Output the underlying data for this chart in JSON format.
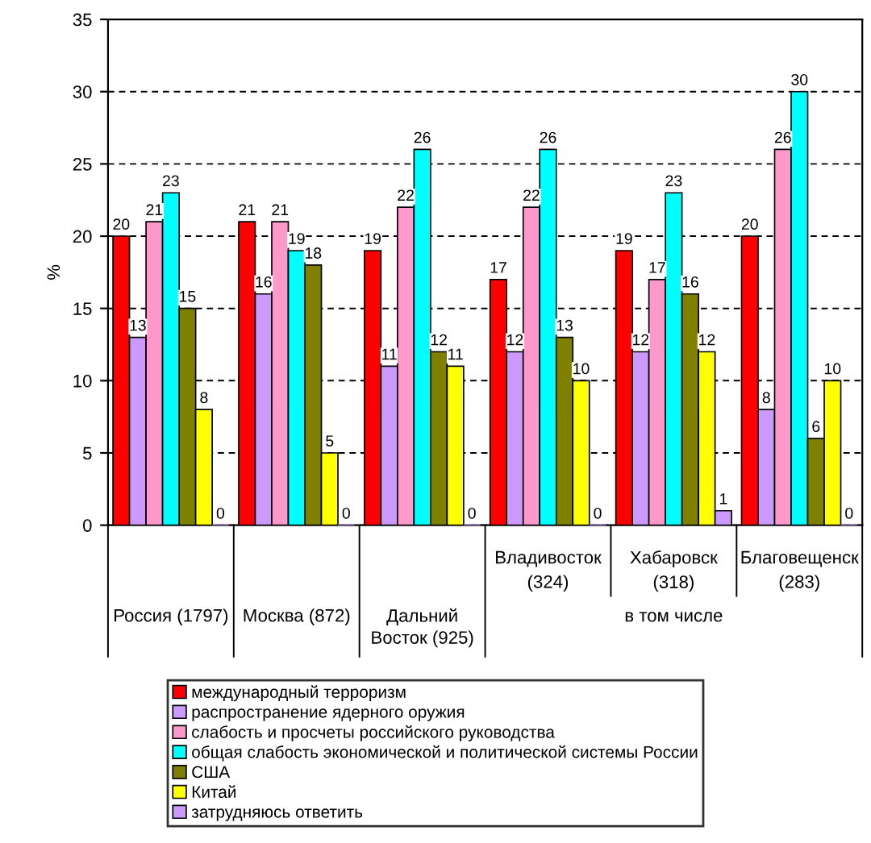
{
  "chart_data": {
    "type": "bar",
    "ylabel": "%",
    "categories": [
      "Россия (1797)",
      "Москва (872)",
      "Дальний Восток (925)",
      "Владивосток (324)",
      "Хабаровск (318)",
      "Благовещенск (283)"
    ],
    "series": [
      {
        "name": "международный терроризм",
        "color": "#ff0000",
        "values": [
          20,
          21,
          19,
          17,
          19,
          20
        ]
      },
      {
        "name": "распространение ядерного оружия",
        "color": "#cc99ff",
        "values": [
          13,
          16,
          11,
          12,
          12,
          8
        ]
      },
      {
        "name": "слабость и просчеты российского руководства",
        "color": "#ff99cc",
        "values": [
          21,
          21,
          22,
          22,
          17,
          26
        ]
      },
      {
        "name": "общая слабость экономической и политической системы России",
        "color": "#00ffff",
        "values": [
          23,
          19,
          26,
          26,
          23,
          30
        ]
      },
      {
        "name": "США",
        "color": "#808000",
        "values": [
          15,
          18,
          12,
          13,
          16,
          6
        ]
      },
      {
        "name": "Китай",
        "color": "#ffff00",
        "values": [
          8,
          5,
          11,
          10,
          12,
          10
        ]
      },
      {
        "name": "затрудняюсь ответить",
        "color": "#cc99ff",
        "values": [
          0,
          0,
          0,
          0,
          1,
          0
        ]
      }
    ],
    "annotations": [
      "в том числе"
    ],
    "ylim": [
      0,
      35
    ],
    "yticks": [
      0,
      5,
      10,
      15,
      20,
      25,
      30,
      35
    ],
    "grid": "y",
    "legend": "bottom",
    "data_labels": true
  }
}
